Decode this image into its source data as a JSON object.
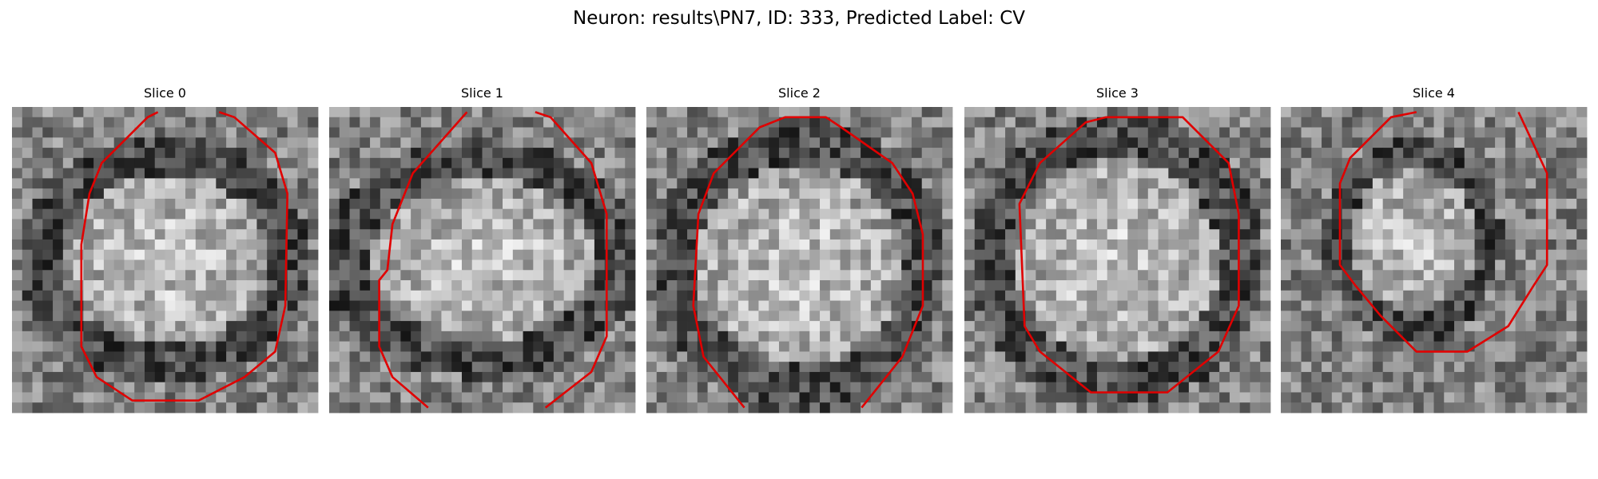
{
  "title": "Neuron: results\\PN7, ID: 333, Predicted Label: CV",
  "panels": [
    {
      "title": "Slice 0"
    },
    {
      "title": "Slice 1"
    },
    {
      "title": "Slice 2"
    },
    {
      "title": "Slice 3"
    },
    {
      "title": "Slice 4"
    }
  ]
}
